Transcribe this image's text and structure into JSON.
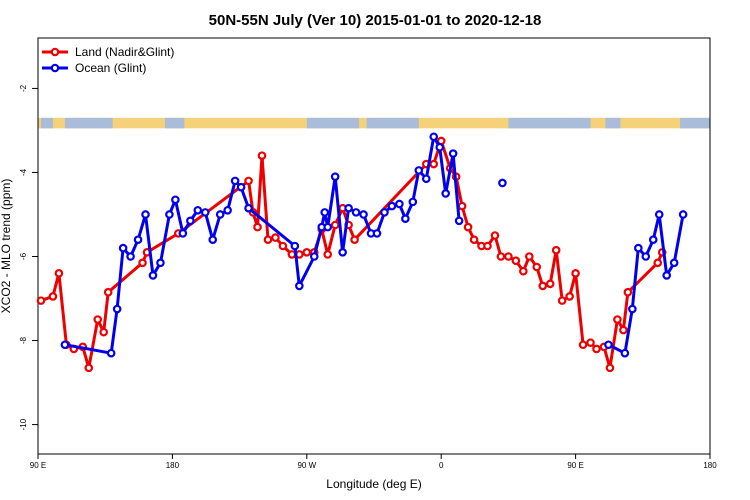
{
  "chart_data": {
    "type": "line",
    "title": "50N-55N July (Ver 10)   2015-01-01 to 2020-12-18",
    "xlabel": "Longitude (deg E)",
    "ylabel": "XCO2 - MLO trend (ppm)",
    "x_ticks": [
      {
        "value": 90,
        "label": "90 E"
      },
      {
        "value": 180,
        "label": "180"
      },
      {
        "value": 270,
        "label": "90 W"
      },
      {
        "value": 360,
        "label": "0"
      },
      {
        "value": 450,
        "label": "90 E"
      },
      {
        "value": 540,
        "label": "180"
      }
    ],
    "y_ticks": [
      -10,
      -8,
      -6,
      -4,
      -2
    ],
    "xlim": [
      90,
      540
    ],
    "ylim": [
      -10.7,
      -0.8
    ],
    "grid": false,
    "legend_position": "top-left",
    "land_band": {
      "y_top": -2.7,
      "y_bottom": -2.95,
      "land_color": "#f5d27a",
      "ocean_color": "#a9bcd9"
    },
    "series": [
      {
        "name": "Land (Nadir&Glint)",
        "color": "#ee0000",
        "points": [
          [
            92,
            -7.05
          ],
          [
            100,
            -6.95
          ],
          [
            104,
            -6.4
          ],
          [
            109,
            -8.1
          ],
          [
            114,
            -8.2
          ],
          [
            120,
            -8.15
          ],
          [
            124,
            -8.65
          ],
          [
            130,
            -7.5
          ],
          [
            134,
            -7.8
          ],
          [
            137,
            -6.85
          ],
          [
            160,
            -6.15
          ],
          [
            163,
            -5.9
          ],
          [
            184,
            -5.45
          ],
          [
            231,
            -4.2
          ],
          [
            234,
            -4.95
          ],
          [
            237,
            -5.3
          ],
          [
            240,
            -3.6
          ],
          [
            244,
            -5.6
          ],
          [
            249,
            -5.55
          ],
          [
            254,
            -5.75
          ],
          [
            260,
            -5.95
          ],
          [
            265,
            -5.95
          ],
          [
            270,
            -5.9
          ],
          [
            275,
            -5.9
          ],
          [
            280,
            -5.35
          ],
          [
            284,
            -5.95
          ],
          [
            289,
            -5.25
          ],
          [
            294,
            -4.85
          ],
          [
            298,
            -5.25
          ],
          [
            302,
            -5.6
          ],
          [
            350,
            -3.8
          ],
          [
            355,
            -3.8
          ],
          [
            360,
            -3.25
          ],
          [
            366,
            -3.9
          ],
          [
            370,
            -4.1
          ],
          [
            374,
            -4.8
          ],
          [
            378,
            -5.3
          ],
          [
            382,
            -5.6
          ],
          [
            387,
            -5.75
          ],
          [
            391,
            -5.75
          ],
          [
            396,
            -5.5
          ],
          [
            400,
            -6.0
          ],
          [
            405,
            -6.0
          ],
          [
            410,
            -6.1
          ],
          [
            415,
            -6.35
          ],
          [
            419,
            -6.0
          ],
          [
            424,
            -6.25
          ],
          [
            428,
            -6.7
          ],
          [
            433,
            -6.65
          ],
          [
            437,
            -5.85
          ],
          [
            441,
            -7.05
          ],
          [
            446,
            -6.95
          ],
          [
            450,
            -6.4
          ],
          [
            455,
            -8.1
          ],
          [
            460,
            -8.05
          ],
          [
            464,
            -8.2
          ],
          [
            469,
            -8.15
          ],
          [
            473,
            -8.65
          ],
          [
            478,
            -7.5
          ],
          [
            482,
            -7.75
          ],
          [
            485,
            -6.85
          ],
          [
            505,
            -6.15
          ],
          [
            508,
            -5.9
          ]
        ]
      },
      {
        "name": "Ocean (Glint)",
        "color": "#0000ee",
        "points": [
          [
            108,
            -8.1
          ],
          [
            139,
            -8.3
          ],
          [
            143,
            -7.25
          ],
          [
            147,
            -5.8
          ],
          [
            152,
            -6.0
          ],
          [
            157,
            -5.6
          ],
          [
            162,
            -5.0
          ],
          [
            167,
            -6.45
          ],
          [
            172,
            -6.15
          ],
          [
            178,
            -5.0
          ],
          [
            182,
            -4.65
          ],
          [
            187,
            -5.45
          ],
          [
            192,
            -5.15
          ],
          [
            197,
            -4.9
          ],
          [
            202,
            -4.95
          ],
          [
            207,
            -5.6
          ],
          [
            212,
            -5.0
          ],
          [
            217,
            -4.9
          ],
          [
            222,
            -4.2
          ],
          [
            226,
            -4.35
          ],
          [
            231,
            -4.85
          ],
          [
            262,
            -5.75
          ],
          [
            265,
            -6.7
          ],
          [
            275,
            -6.0
          ],
          [
            280,
            -5.3
          ],
          [
            282,
            -4.95
          ],
          [
            284,
            -5.3
          ],
          [
            289,
            -4.1
          ],
          [
            294,
            -5.9
          ],
          [
            298,
            -4.85
          ],
          [
            303,
            -4.95
          ],
          [
            308,
            -5.0
          ],
          [
            313,
            -5.45
          ],
          [
            317,
            -5.45
          ],
          [
            322,
            -4.95
          ],
          [
            327,
            -4.8
          ],
          [
            332,
            -4.75
          ],
          [
            336,
            -5.1
          ],
          [
            341,
            -4.7
          ],
          [
            345,
            -3.95
          ],
          [
            350,
            -4.15
          ],
          [
            355,
            -3.15
          ],
          [
            359,
            -3.4
          ],
          [
            363,
            -4.5
          ],
          [
            368,
            -3.55
          ],
          [
            372,
            -5.15
          ]
        ]
      },
      {
        "name": "Ocean (Glint)",
        "color": "#0000ee",
        "points": [
          [
            401,
            -4.25
          ]
        ]
      },
      {
        "name": "Ocean (Glint)",
        "color": "#0000ee",
        "points": [
          [
            472,
            -8.1
          ],
          [
            483,
            -8.3
          ],
          [
            488,
            -7.25
          ],
          [
            492,
            -5.8
          ],
          [
            497,
            -6.0
          ],
          [
            502,
            -5.6
          ],
          [
            506,
            -5.0
          ],
          [
            511,
            -6.45
          ],
          [
            516,
            -6.15
          ],
          [
            522,
            -5.0
          ]
        ]
      }
    ],
    "legend": [
      {
        "label": "Land (Nadir&Glint)",
        "color": "#ee0000"
      },
      {
        "label": "Ocean (Glint)",
        "color": "#0000ee"
      }
    ]
  }
}
